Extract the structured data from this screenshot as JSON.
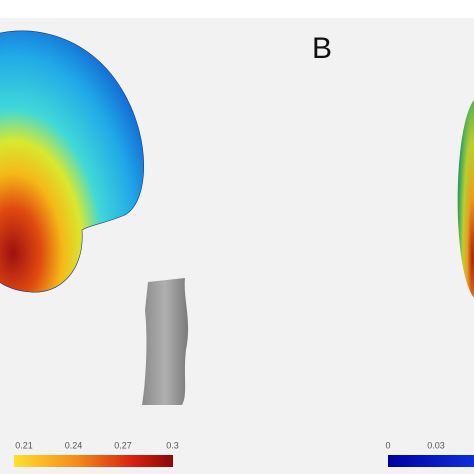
{
  "panel_label": "B",
  "colorbars": [
    {
      "ticks": [
        0.21,
        0.24,
        0.27,
        0.3
      ]
    },
    {
      "ticks": [
        0,
        0.03
      ]
    }
  ]
}
